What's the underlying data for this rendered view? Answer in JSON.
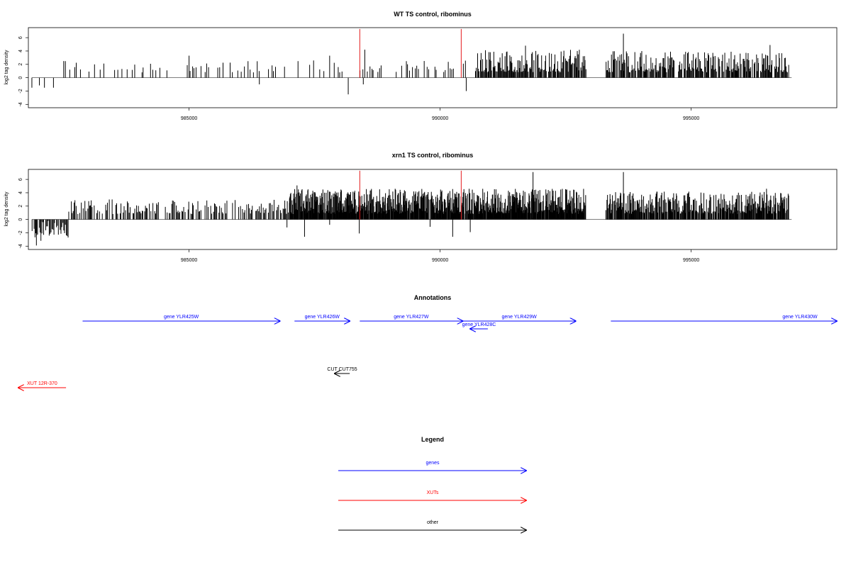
{
  "chart_data": [
    {
      "type": "bar",
      "title": "WT TS control, ribominus",
      "ylabel": "log2 tag density",
      "xlim": [
        981800,
        997900
      ],
      "ylim": [
        -4.5,
        7.5
      ],
      "x_ticks": [
        985000,
        990000,
        995000
      ],
      "y_ticks": [
        -4,
        -2,
        0,
        2,
        4,
        6
      ],
      "bar_color": "#000000",
      "highlight_color": "#e41a1c",
      "highlights": [
        {
          "x": 988400,
          "y": 7.3
        },
        {
          "x": 990420,
          "y": 7.3
        }
      ],
      "segments": [
        {
          "from": 981870,
          "to": 982400,
          "step": 100,
          "base": -1.2,
          "amp": 0.5,
          "density": 0.5
        },
        {
          "from": 982500,
          "to": 987000,
          "step": 36,
          "base": 1.3,
          "amp": 1.2,
          "density": 0.34
        },
        {
          "from": 987000,
          "to": 988300,
          "step": 40,
          "base": 1.4,
          "amp": 1.3,
          "density": 0.4
        },
        {
          "from": 988300,
          "to": 990500,
          "step": 30,
          "base": 1.4,
          "amp": 1.2,
          "density": 0.45
        },
        {
          "from": 990700,
          "to": 992900,
          "step": 14,
          "base": 2.0,
          "amp": 2.2,
          "density": 0.88
        },
        {
          "from": 993300,
          "to": 996950,
          "step": 14,
          "base": 2.0,
          "amp": 2.0,
          "density": 0.8
        }
      ],
      "tall_bars": [
        {
          "x": 985000,
          "y": 3.3
        },
        {
          "x": 987800,
          "y": 3.3
        },
        {
          "x": 988500,
          "y": 4.2
        },
        {
          "x": 991700,
          "y": 4.8
        },
        {
          "x": 993650,
          "y": 6.6
        },
        {
          "x": 996570,
          "y": 4.9
        }
      ],
      "negative_bars": [
        {
          "x": 981870,
          "y": -1.5
        },
        {
          "x": 982120,
          "y": -1.5
        },
        {
          "x": 982300,
          "y": -1.5
        },
        {
          "x": 986400,
          "y": -1.0
        },
        {
          "x": 988170,
          "y": -2.5
        },
        {
          "x": 988470,
          "y": -1.0
        },
        {
          "x": 990520,
          "y": -2.0
        }
      ]
    },
    {
      "type": "bar",
      "title": "xrn1 TS control, ribominus",
      "ylabel": "log2 tag density",
      "xlim": [
        981800,
        997900
      ],
      "ylim": [
        -4.5,
        7.5
      ],
      "x_ticks": [
        985000,
        990000,
        995000
      ],
      "y_ticks": [
        -4,
        -2,
        0,
        2,
        4,
        6
      ],
      "bar_color": "#000000",
      "highlight_color": "#e41a1c",
      "highlights": [
        {
          "x": 988400,
          "y": 7.3
        },
        {
          "x": 990420,
          "y": 7.3
        }
      ],
      "segments": [
        {
          "from": 981870,
          "to": 982600,
          "step": 18,
          "base": -1.5,
          "amp": 1.5,
          "density": 0.8
        },
        {
          "from": 982600,
          "to": 987000,
          "step": 18,
          "base": 1.7,
          "amp": 1.3,
          "density": 0.6
        },
        {
          "from": 987000,
          "to": 992900,
          "step": 8,
          "base": 2.4,
          "amp": 2.2,
          "density": 0.93
        },
        {
          "from": 993300,
          "to": 996950,
          "step": 10,
          "base": 2.2,
          "amp": 2.0,
          "density": 0.85
        }
      ],
      "tall_bars": [
        {
          "x": 987150,
          "y": 5.1
        },
        {
          "x": 988300,
          "y": 4.3
        },
        {
          "x": 991850,
          "y": 7.1
        },
        {
          "x": 993650,
          "y": 7.1
        },
        {
          "x": 996500,
          "y": 4.6
        }
      ],
      "negative_bars": [
        {
          "x": 981960,
          "y": -3.9
        },
        {
          "x": 982050,
          "y": -3.2
        },
        {
          "x": 986950,
          "y": -1.2
        },
        {
          "x": 987300,
          "y": -2.6
        },
        {
          "x": 987800,
          "y": -0.8
        },
        {
          "x": 988390,
          "y": -2.1
        },
        {
          "x": 989800,
          "y": -1.1
        },
        {
          "x": 990250,
          "y": -2.6
        },
        {
          "x": 990600,
          "y": -1.9
        }
      ]
    }
  ],
  "annotations": {
    "title": "Annotations",
    "colors": {
      "gene": "#0000ff",
      "xut": "#ff0000",
      "other": "#000000"
    },
    "features": [
      {
        "kind": "gene",
        "label": "gene YLR425W",
        "x1": 982880,
        "x2": 986810,
        "dir": "right",
        "row": 0
      },
      {
        "kind": "gene",
        "label": "gene YLR426W",
        "x1": 987100,
        "x2": 988200,
        "dir": "right",
        "row": 0
      },
      {
        "kind": "gene",
        "label": "gene YLR427W",
        "x1": 988400,
        "x2": 990450,
        "dir": "right",
        "row": 0
      },
      {
        "kind": "gene",
        "label": "gene YLR429W",
        "x1": 990450,
        "x2": 992700,
        "dir": "right",
        "row": 0
      },
      {
        "kind": "gene",
        "label": "gene YLR430W",
        "x1": 993400,
        "x2": 997900,
        "dir": "right",
        "row": 0
      },
      {
        "kind": "gene",
        "label": "gene YLR428C",
        "x1": 990600,
        "x2": 990950,
        "dir": "left",
        "row": 1
      },
      {
        "kind": "other",
        "label": "CUT CUT755",
        "x1": 987900,
        "x2": 988200,
        "dir": "left",
        "row": 2
      },
      {
        "kind": "xut",
        "label": "XUT 12R-370",
        "x1": 981600,
        "x2": 982550,
        "dir": "left",
        "row": 3
      }
    ]
  },
  "legend": {
    "title": "Legend",
    "items": [
      {
        "label": "genes",
        "color": "#0000ff"
      },
      {
        "label": "XUTs",
        "color": "#ff0000"
      },
      {
        "label": "other",
        "color": "#000000"
      }
    ]
  }
}
